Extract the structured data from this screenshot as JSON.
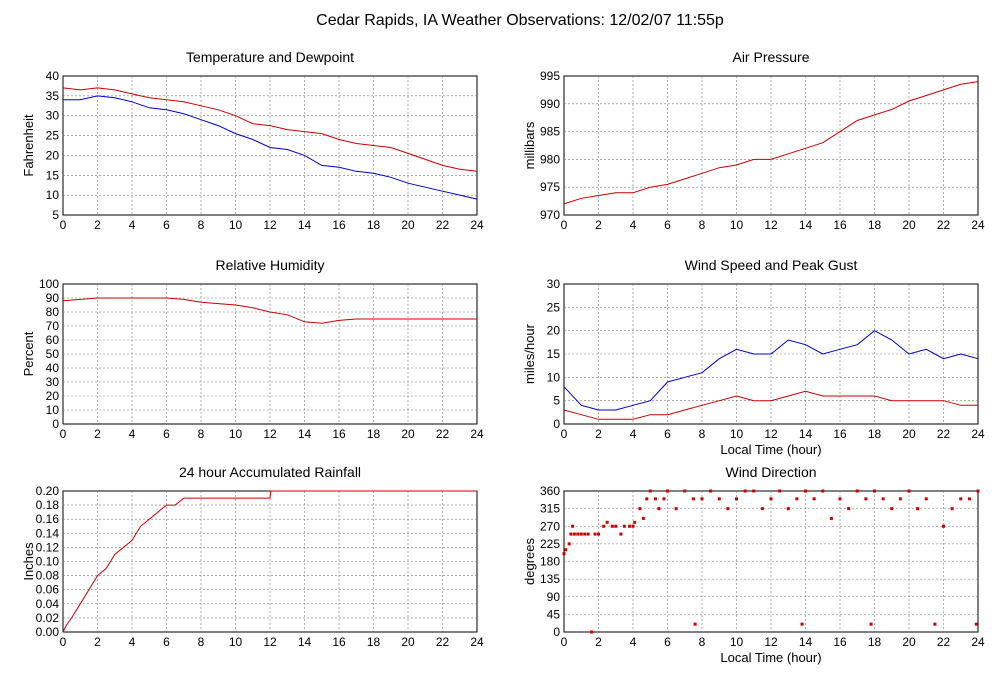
{
  "title": "Cedar Rapids, IA Weather Observations: 12/02/07 11:55p",
  "chart_data": [
    {
      "id": "temp",
      "type": "line",
      "title": "Temperature and Dewpoint",
      "ylabel": "Fahrenheit",
      "xlabel": "",
      "xlim": [
        0,
        24
      ],
      "ylim": [
        5,
        40
      ],
      "xticks": [
        0,
        2,
        4,
        6,
        8,
        10,
        12,
        14,
        16,
        18,
        20,
        22,
        24
      ],
      "yticks": [
        5,
        10,
        15,
        20,
        25,
        30,
        35,
        40
      ],
      "grid": true,
      "series": [
        {
          "color": "#cc0000",
          "x": [
            0,
            1,
            2,
            3,
            4,
            5,
            6,
            7,
            8,
            9,
            10,
            11,
            12,
            13,
            14,
            15,
            16,
            17,
            18,
            19,
            20,
            21,
            22,
            23,
            24
          ],
          "values": [
            37,
            36.5,
            37,
            36.5,
            35.5,
            34.5,
            34,
            33.5,
            32.5,
            31.5,
            30,
            28,
            27.5,
            26.5,
            26,
            25.5,
            24,
            23,
            22.5,
            22,
            20.5,
            19,
            17.5,
            16.5,
            16
          ]
        },
        {
          "color": "#0000cc",
          "x": [
            0,
            1,
            2,
            3,
            4,
            5,
            6,
            7,
            8,
            9,
            10,
            11,
            12,
            13,
            14,
            15,
            16,
            17,
            18,
            19,
            20,
            21,
            22,
            23,
            24
          ],
          "values": [
            34,
            34,
            35,
            34.5,
            33.5,
            32,
            31.5,
            30.5,
            29,
            27.5,
            25.5,
            24,
            22,
            21.5,
            20,
            17.5,
            17,
            16,
            15.5,
            14.5,
            13,
            12,
            11,
            10,
            9
          ]
        }
      ]
    },
    {
      "id": "press",
      "type": "line",
      "title": "Air Pressure",
      "ylabel": "millibars",
      "xlabel": "",
      "xlim": [
        0,
        24
      ],
      "ylim": [
        970,
        995
      ],
      "xticks": [
        0,
        2,
        4,
        6,
        8,
        10,
        12,
        14,
        16,
        18,
        20,
        22,
        24
      ],
      "yticks": [
        970,
        975,
        980,
        985,
        990,
        995
      ],
      "grid": true,
      "series": [
        {
          "color": "#cc0000",
          "x": [
            0,
            1,
            2,
            3,
            4,
            5,
            6,
            7,
            8,
            9,
            10,
            11,
            12,
            13,
            14,
            15,
            16,
            17,
            18,
            19,
            20,
            21,
            22,
            23,
            24
          ],
          "values": [
            972,
            973,
            973.5,
            974,
            974,
            975,
            975.5,
            976.5,
            977.5,
            978.5,
            979,
            980,
            980,
            981,
            982,
            983,
            985,
            987,
            988,
            989,
            990.5,
            991.5,
            992.5,
            993.5,
            994
          ]
        }
      ]
    },
    {
      "id": "rh",
      "type": "line",
      "title": "Relative Humidity",
      "ylabel": "Percent",
      "xlabel": "",
      "xlim": [
        0,
        24
      ],
      "ylim": [
        0,
        100
      ],
      "xticks": [
        0,
        2,
        4,
        6,
        8,
        10,
        12,
        14,
        16,
        18,
        20,
        22,
        24
      ],
      "yticks": [
        0,
        10,
        20,
        30,
        40,
        50,
        60,
        70,
        80,
        90,
        100
      ],
      "grid": true,
      "series": [
        {
          "color": "#cc0000",
          "x": [
            0,
            1,
            2,
            3,
            4,
            5,
            6,
            7,
            8,
            9,
            10,
            11,
            12,
            13,
            14,
            15,
            16,
            17,
            18,
            19,
            20,
            21,
            22,
            23,
            24
          ],
          "values": [
            88,
            89,
            90,
            90,
            90,
            90,
            90,
            89,
            87,
            86,
            85,
            83,
            80,
            78,
            73,
            72,
            74,
            75,
            75,
            75,
            75,
            75,
            75,
            75,
            75
          ]
        }
      ]
    },
    {
      "id": "wind",
      "type": "line",
      "title": "Wind Speed and Peak Gust",
      "ylabel": "miles/hour",
      "xlabel": "Local Time (hour)",
      "xlim": [
        0,
        24
      ],
      "ylim": [
        0,
        30
      ],
      "xticks": [
        0,
        2,
        4,
        6,
        8,
        10,
        12,
        14,
        16,
        18,
        20,
        22,
        24
      ],
      "yticks": [
        0,
        5,
        10,
        15,
        20,
        25,
        30
      ],
      "grid": true,
      "series": [
        {
          "color": "#0000cc",
          "x": [
            0,
            1,
            2,
            3,
            4,
            5,
            6,
            7,
            8,
            9,
            10,
            11,
            12,
            13,
            14,
            15,
            16,
            17,
            18,
            19,
            20,
            21,
            22,
            23,
            24
          ],
          "values": [
            8,
            4,
            3,
            3,
            4,
            5,
            9,
            10,
            11,
            14,
            16,
            15,
            15,
            18,
            17,
            15,
            16,
            17,
            20,
            18,
            15,
            16,
            14,
            15,
            14
          ]
        },
        {
          "color": "#cc0000",
          "x": [
            0,
            1,
            2,
            3,
            4,
            5,
            6,
            7,
            8,
            9,
            10,
            11,
            12,
            13,
            14,
            15,
            16,
            17,
            18,
            19,
            20,
            21,
            22,
            23,
            24
          ],
          "values": [
            3,
            2,
            1,
            1,
            1,
            2,
            2,
            3,
            4,
            5,
            6,
            5,
            5,
            6,
            7,
            6,
            6,
            6,
            6,
            5,
            5,
            5,
            5,
            4,
            4
          ]
        }
      ]
    },
    {
      "id": "rain",
      "type": "line",
      "title": "24 hour Accumulated Rainfall",
      "ylabel": "Inches",
      "xlabel": "",
      "xlim": [
        0,
        24
      ],
      "ylim": [
        0,
        0.2
      ],
      "xticks": [
        0,
        2,
        4,
        6,
        8,
        10,
        12,
        14,
        16,
        18,
        20,
        22,
        24
      ],
      "yticks": [
        "0.00",
        "0.02",
        "0.04",
        "0.06",
        "0.08",
        "0.10",
        "0.12",
        "0.14",
        "0.16",
        "0.18",
        "0.20"
      ],
      "grid": true,
      "series": [
        {
          "color": "#cc0000",
          "x": [
            0,
            0.2,
            0.5,
            1,
            1.5,
            2,
            2.5,
            3,
            3.5,
            4,
            4.5,
            5,
            5.5,
            6,
            6.5,
            7,
            8,
            9,
            10,
            11,
            12,
            12.05,
            24
          ],
          "values": [
            0,
            0.01,
            0.02,
            0.04,
            0.06,
            0.08,
            0.09,
            0.11,
            0.12,
            0.13,
            0.15,
            0.16,
            0.17,
            0.18,
            0.18,
            0.19,
            0.19,
            0.19,
            0.19,
            0.19,
            0.19,
            0.2,
            0.2
          ]
        }
      ]
    },
    {
      "id": "wdir",
      "type": "scatter",
      "title": "Wind Direction",
      "ylabel": "degrees",
      "xlabel": "Local Time (hour)",
      "xlim": [
        0,
        24
      ],
      "ylim": [
        0,
        360
      ],
      "xticks": [
        0,
        2,
        4,
        6,
        8,
        10,
        12,
        14,
        16,
        18,
        20,
        22,
        24
      ],
      "yticks": [
        0,
        45,
        90,
        135,
        180,
        225,
        270,
        315,
        360
      ],
      "grid": true,
      "series": [
        {
          "color": "#cc0000",
          "x": [
            0,
            0.1,
            0.3,
            0.4,
            0.5,
            0.6,
            0.8,
            1,
            1.2,
            1.4,
            1.6,
            1.8,
            2,
            2.3,
            2.5,
            2.8,
            3,
            3.3,
            3.5,
            3.8,
            4,
            4.1,
            4.4,
            4.6,
            4.8,
            5,
            5.3,
            5.5,
            5.8,
            6,
            6.5,
            7,
            7.5,
            7.6,
            8,
            8.5,
            9,
            9.5,
            10,
            10.5,
            11,
            11.5,
            12,
            12.5,
            13,
            13.5,
            13.8,
            14,
            14.5,
            15,
            15.5,
            16,
            16.5,
            17,
            17.5,
            17.8,
            18,
            18.5,
            19,
            19.5,
            20,
            20.5,
            21,
            21.5,
            22,
            22.5,
            23,
            23.5,
            23.9,
            24
          ],
          "values": [
            200,
            210,
            225,
            250,
            270,
            250,
            250,
            250,
            250,
            250,
            0,
            250,
            250,
            270,
            280,
            270,
            270,
            250,
            270,
            270,
            270,
            280,
            315,
            290,
            340,
            360,
            340,
            315,
            340,
            360,
            315,
            360,
            340,
            20,
            340,
            360,
            340,
            315,
            340,
            360,
            360,
            315,
            340,
            360,
            315,
            340,
            20,
            360,
            340,
            360,
            290,
            340,
            315,
            360,
            340,
            20,
            360,
            340,
            315,
            340,
            360,
            315,
            340,
            20,
            270,
            315,
            340,
            340,
            20,
            360
          ]
        }
      ]
    }
  ]
}
